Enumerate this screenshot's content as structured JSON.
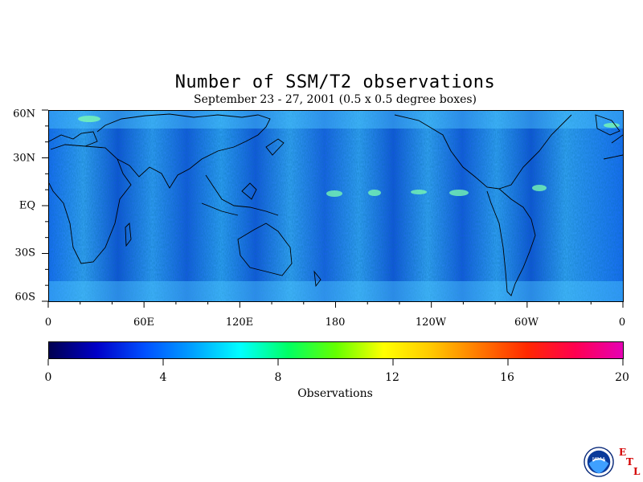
{
  "title": "Number of SSM/T2 observations",
  "subtitle": "September 23 - 27, 2001 (0.5 x 0.5 degree boxes)",
  "lat_ticks": [
    "60N",
    "30N",
    "EQ",
    "30S",
    "60S"
  ],
  "lon_ticks": [
    "0",
    "60E",
    "120E",
    "180",
    "120W",
    "60W",
    "0"
  ],
  "colorbar": {
    "ticks": [
      "0",
      "4",
      "8",
      "12",
      "16",
      "20"
    ],
    "label": "Observations",
    "range": [
      0,
      20
    ],
    "colors": [
      "#000050",
      "#0000c8",
      "#0050ff",
      "#00a0ff",
      "#00ffff",
      "#00ff64",
      "#64ff00",
      "#ffff00",
      "#ffc800",
      "#ff7800",
      "#ff2800",
      "#ff0050",
      "#e600b4"
    ]
  },
  "map": {
    "lat_range": [
      -60,
      60
    ],
    "lon_range": [
      0,
      360
    ],
    "dominant_values": "3-7 observations",
    "background_color": "#2a8cff"
  },
  "logo": {
    "icon": "noaa-logo",
    "text": "NOAA",
    "letters": [
      "E",
      "T",
      "L"
    ]
  }
}
